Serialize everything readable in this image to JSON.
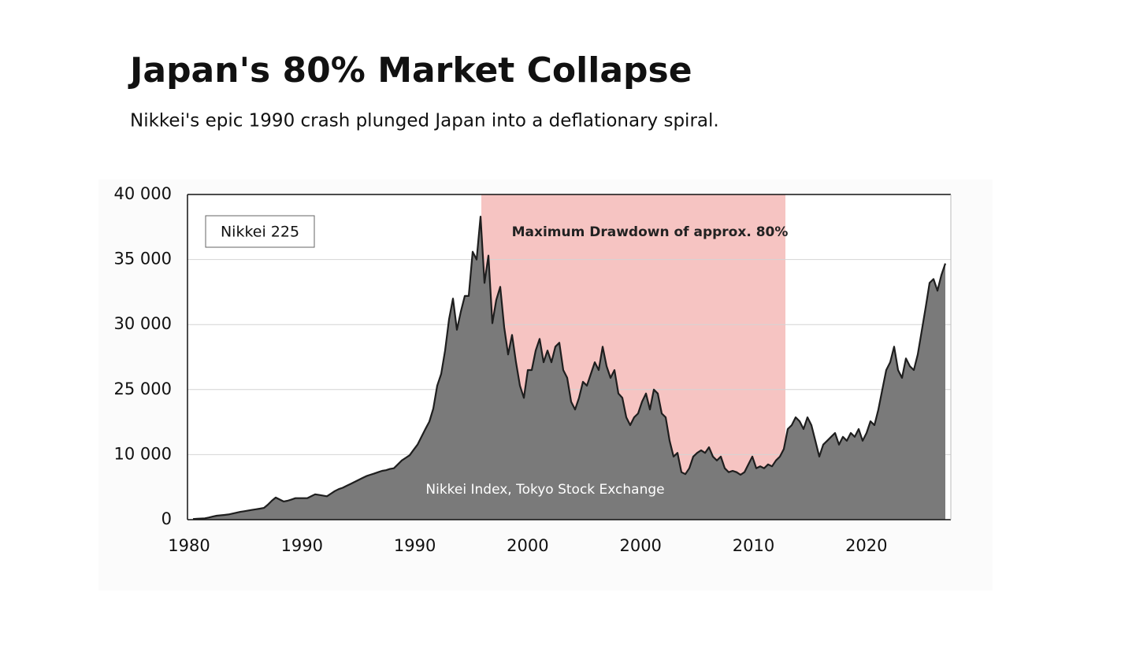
{
  "chart_data": {
    "type": "area",
    "title": "Japan's 80% Market Collapse",
    "subtitle": "Nikkei's epic 1990 crash plunged Japan into a deflationary spiral.",
    "legend_label": "Nikkei 225",
    "annotation": "Maximum Drawdown of approx. 80%",
    "source": "Nikkei Index, Tokyo Stock Exchange",
    "xticks": [
      "1980",
      "1990",
      "1990",
      "2000",
      "2000",
      "2010",
      "2020"
    ],
    "ylim": [
      0,
      40000
    ],
    "yticks": [
      0,
      {
        "value": 10000,
        "label": "10 000"
      },
      {
        "value": 25000,
        "label": "25 000"
      },
      {
        "value": 30000,
        "label": "30 000"
      },
      {
        "value": 35000,
        "label": "35 000"
      },
      {
        "value": 40000,
        "label": "40 000"
      }
    ],
    "grid": true,
    "color": "#7a7a7a",
    "line_color": "#1e1e1e",
    "highlight_color": "#f6c4c2",
    "values": [
      100,
      130,
      170,
      200,
      330,
      470,
      600,
      670,
      730,
      800,
      930,
      1070,
      1200,
      1300,
      1400,
      1500,
      1600,
      1700,
      1800,
      2300,
      2900,
      3400,
      3100,
      2800,
      2900,
      3100,
      3300,
      3300,
      3300,
      3300,
      3600,
      3900,
      3800,
      3700,
      3600,
      4000,
      4400,
      4700,
      4900,
      5200,
      5500,
      5800,
      6100,
      6400,
      6700,
      6900,
      7100,
      7300,
      7500,
      7600,
      7800,
      7900,
      8500,
      9100,
      9500,
      9900,
      11100,
      12300,
      14100,
      15900,
      17600,
      20600,
      25300,
      26200,
      28000,
      30400,
      32000,
      29600,
      31000,
      32200,
      32200,
      35600,
      35000,
      38300,
      33200,
      35300,
      30100,
      31900,
      32900,
      29800,
      27700,
      29200,
      27100,
      25300,
      23100,
      26500,
      26500,
      28000,
      28900,
      27100,
      28000,
      27100,
      28300,
      28600,
      26500,
      25900,
      22200,
      20400,
      23100,
      25600,
      25300,
      26200,
      27100,
      26500,
      28300,
      26800,
      25900,
      26500,
      24100,
      23100,
      18600,
      16800,
      18600,
      19500,
      22200,
      24100,
      20400,
      25000,
      24100,
      19500,
      18600,
      13200,
      9700,
      10400,
      7300,
      7000,
      7900,
      9700,
      10400,
      11000,
      10400,
      11700,
      9700,
      9100,
      9700,
      7900,
      7300,
      7500,
      7300,
      6900,
      7300,
      8500,
      9700,
      7900,
      8200,
      7900,
      8500,
      8200,
      9100,
      9700,
      11300,
      15900,
      16800,
      18600,
      17700,
      15900,
      18600,
      16800,
      13200,
      9700,
      12300,
      13200,
      14100,
      15000,
      12300,
      14100,
      13200,
      15000,
      14100,
      15900,
      13200,
      15000,
      17700,
      16800,
      20400,
      25000,
      26500,
      27100,
      28300,
      26500,
      25900,
      27400,
      26800,
      26500,
      27700,
      29500,
      31300,
      33200,
      33500,
      32600,
      33800,
      34700
    ]
  }
}
